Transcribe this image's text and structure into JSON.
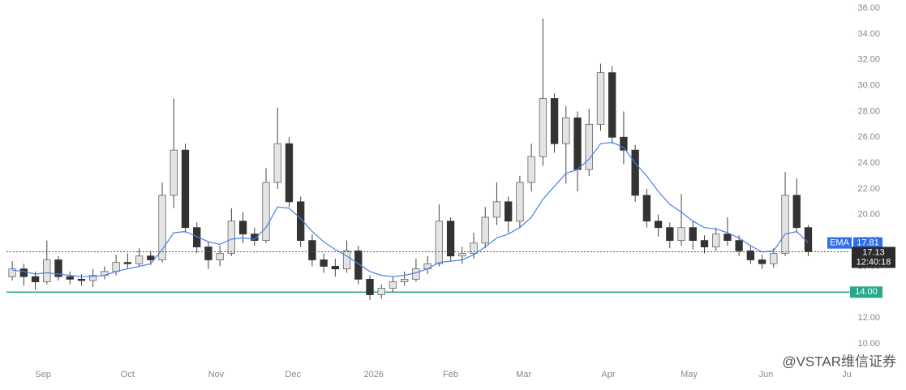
{
  "chart_data": {
    "type": "candlestick",
    "x": [
      -8,
      -5,
      -2,
      1,
      4,
      7,
      10,
      13,
      16,
      19,
      22,
      25,
      28,
      31,
      34,
      37,
      40,
      43,
      46,
      49,
      52,
      55,
      58,
      61,
      64,
      67,
      70,
      73,
      76,
      79,
      82,
      85,
      88,
      91,
      94,
      97,
      100,
      103,
      106,
      109,
      112,
      115,
      118,
      121,
      124,
      127,
      130,
      133,
      136,
      139,
      142,
      145,
      148,
      151,
      154,
      157,
      160,
      163,
      166,
      169,
      172,
      175,
      178,
      181,
      184,
      187,
      190,
      193,
      196,
      199
    ],
    "open": [
      15.2,
      15.8,
      15.2,
      14.8,
      16.5,
      15.2,
      15.0,
      14.9,
      15.3,
      15.6,
      16.3,
      16.2,
      16.8,
      16.5,
      21.5,
      25.0,
      19.0,
      17.5,
      16.5,
      17.0,
      19.5,
      18.5,
      18.0,
      22.5,
      25.5,
      21.0,
      18.0,
      16.5,
      16.0,
      15.8,
      17.2,
      15.0,
      13.8,
      14.3,
      14.8,
      15.0,
      15.8,
      16.2,
      19.5,
      16.8,
      17.0,
      17.8,
      19.8,
      21.0,
      19.5,
      22.5,
      24.5,
      29.0,
      25.5,
      27.5,
      23.5,
      27.0,
      31.0,
      26.0,
      25.0,
      21.5,
      19.5,
      19.0,
      18.0,
      19.0,
      18.0,
      17.5,
      18.5,
      18.0,
      17.2,
      16.5,
      16.2,
      17.0,
      21.5,
      19.0
    ],
    "high": [
      16.4,
      16.2,
      15.6,
      18.0,
      16.8,
      15.6,
      15.4,
      15.8,
      16.0,
      16.9,
      17.0,
      17.4,
      17.2,
      22.5,
      29.0,
      25.5,
      19.4,
      17.9,
      17.6,
      20.5,
      20.2,
      19.0,
      23.6,
      28.3,
      26.0,
      21.4,
      18.5,
      17.0,
      16.6,
      18.0,
      17.6,
      15.3,
      14.6,
      15.2,
      15.6,
      16.6,
      16.8,
      20.8,
      19.8,
      17.5,
      18.6,
      20.6,
      22.5,
      21.4,
      23.0,
      25.5,
      35.2,
      29.4,
      28.4,
      28.0,
      28.2,
      31.7,
      31.5,
      28.0,
      25.4,
      22.0,
      20.0,
      19.4,
      21.6,
      19.5,
      18.4,
      19.0,
      19.8,
      18.4,
      17.6,
      16.9,
      17.4,
      23.3,
      22.8,
      19.2
    ],
    "low": [
      14.9,
      14.5,
      14.2,
      14.6,
      14.9,
      14.6,
      14.5,
      14.4,
      15.0,
      15.3,
      15.8,
      16.0,
      16.1,
      16.3,
      20.5,
      18.6,
      17.0,
      15.8,
      16.0,
      16.8,
      17.8,
      17.6,
      17.8,
      22.0,
      20.6,
      17.5,
      16.0,
      15.5,
      15.2,
      15.5,
      14.6,
      13.4,
      13.5,
      14.0,
      14.5,
      14.8,
      15.4,
      16.0,
      16.4,
      16.2,
      16.6,
      17.4,
      19.2,
      18.6,
      19.0,
      21.8,
      23.8,
      24.8,
      22.4,
      21.8,
      23.0,
      26.5,
      25.5,
      23.9,
      21.0,
      19.0,
      18.3,
      17.4,
      17.6,
      17.3,
      17.0,
      17.2,
      17.6,
      16.8,
      16.2,
      15.8,
      15.9,
      16.8,
      18.6,
      16.8
    ],
    "close": [
      15.8,
      15.2,
      14.8,
      16.5,
      15.2,
      15.0,
      14.9,
      15.3,
      15.6,
      16.3,
      16.2,
      16.8,
      16.5,
      21.5,
      25.0,
      19.0,
      17.5,
      16.5,
      17.0,
      19.5,
      18.5,
      18.0,
      22.5,
      25.5,
      21.0,
      18.0,
      16.5,
      16.0,
      15.8,
      17.2,
      15.0,
      13.8,
      14.3,
      14.8,
      15.0,
      15.8,
      16.2,
      19.5,
      16.8,
      17.0,
      17.8,
      19.8,
      21.0,
      19.5,
      22.5,
      24.5,
      29.0,
      25.5,
      27.5,
      23.5,
      27.0,
      31.0,
      26.0,
      25.0,
      21.5,
      19.5,
      19.0,
      18.0,
      19.0,
      18.0,
      17.5,
      18.5,
      18.0,
      17.2,
      16.5,
      16.2,
      17.0,
      21.5,
      19.0,
      17.13
    ],
    "up_color": "#e4e4e4",
    "down_color": "#333333",
    "ema": {
      "name": "EMA",
      "color": "#4a80e8",
      "values": [
        15.7,
        15.6,
        15.4,
        15.5,
        15.4,
        15.3,
        15.2,
        15.2,
        15.3,
        15.6,
        15.8,
        16.0,
        16.2,
        17.3,
        18.6,
        18.7,
        18.3,
        17.9,
        17.7,
        18.1,
        18.2,
        18.1,
        19.0,
        20.6,
        20.5,
        19.7,
        18.7,
        17.9,
        17.3,
        16.8,
        16.2,
        15.6,
        15.3,
        15.2,
        15.3,
        15.5,
        15.8,
        16.3,
        16.4,
        16.5,
        16.9,
        17.5,
        18.2,
        18.5,
        19.0,
        19.8,
        21.2,
        22.2,
        23.2,
        23.5,
        24.3,
        25.5,
        25.6,
        25.2,
        24.0,
        23.0,
        21.8,
        20.8,
        20.2,
        19.5,
        19.0,
        18.9,
        18.6,
        18.2,
        17.6,
        17.1,
        17.2,
        18.5,
        18.7,
        17.81
      ]
    },
    "level": {
      "value": 14,
      "label": "14.00",
      "color": "#2aa88a"
    },
    "countdown": "12:40:18",
    "watermark": "@VSTAR维信证券",
    "xlim": [
      -9.5,
      210.5
    ],
    "xticks": [
      {
        "value": 0,
        "label": "Sep"
      },
      {
        "value": 22,
        "label": "Oct"
      },
      {
        "value": 45,
        "label": "Nov"
      },
      {
        "value": 65,
        "label": "Dec"
      },
      {
        "value": 86,
        "label": "2026"
      },
      {
        "value": 106,
        "label": "Feb"
      },
      {
        "value": 125,
        "label": "Mar"
      },
      {
        "value": 147,
        "label": "Apr"
      },
      {
        "value": 168,
        "label": "May"
      },
      {
        "value": 188,
        "label": "Jun"
      },
      {
        "value": 209,
        "label": "Ju"
      }
    ],
    "ylim": [
      7.11,
      36.63
    ],
    "yticks": [
      {
        "value": 10,
        "label": "10.00"
      },
      {
        "value": 12,
        "label": "12.00"
      },
      {
        "value": 14,
        "label": "14.00"
      },
      {
        "value": 16,
        "label": "16.00"
      },
      {
        "value": 18,
        "label": "18.00"
      },
      {
        "value": 20,
        "label": "20.00"
      },
      {
        "value": 22,
        "label": "22.00"
      },
      {
        "value": 24,
        "label": "24.00"
      },
      {
        "value": 26,
        "label": "26.00"
      },
      {
        "value": 28,
        "label": "28.00"
      },
      {
        "value": 30,
        "label": "30.00"
      },
      {
        "value": 32,
        "label": "32.00"
      },
      {
        "value": 34,
        "label": "34.00"
      },
      {
        "value": 36,
        "label": "36.00"
      }
    ]
  }
}
